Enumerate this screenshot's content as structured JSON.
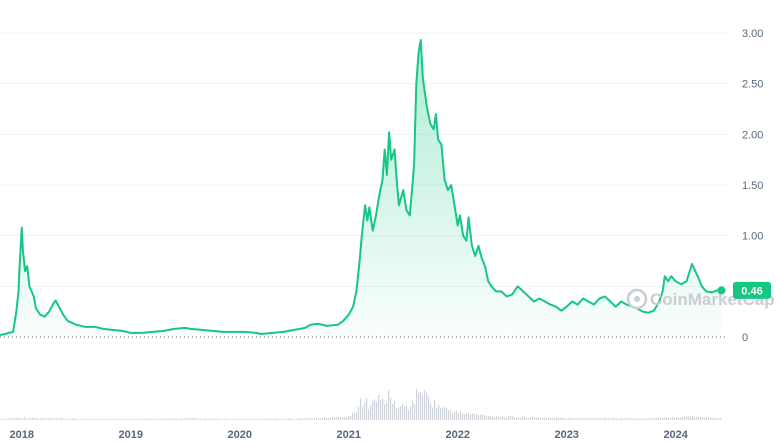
{
  "chart_data": {
    "type": "area",
    "title": "",
    "xlabel": "",
    "ylabel": "",
    "ylim": [
      0,
      3.0
    ],
    "y_ticks": [
      "3.00",
      "2.50",
      "2.00",
      "1.50",
      "1.00",
      "0.50",
      "0"
    ],
    "y_tick_values": [
      3.0,
      2.5,
      2.0,
      1.5,
      1.0,
      0.5,
      0
    ],
    "x_ticks": [
      "2018",
      "2019",
      "2020",
      "2021",
      "2022",
      "2023",
      "2024"
    ],
    "x_tick_values": [
      2018.0,
      2019.0,
      2020.0,
      2021.0,
      2022.0,
      2023.0,
      2024.0
    ],
    "xlim": [
      2017.8,
      2024.48
    ],
    "grid": true,
    "line_color": "#16c784",
    "current_price_label": "0.46",
    "current_price": 0.46,
    "watermark": "CoinMarketCap",
    "series": [
      {
        "values": [
          [
            2017.8,
            0.02
          ],
          [
            2017.85,
            0.03
          ],
          [
            2017.88,
            0.04
          ],
          [
            2017.92,
            0.05
          ],
          [
            2017.95,
            0.25
          ],
          [
            2017.97,
            0.45
          ],
          [
            2017.98,
            0.7
          ],
          [
            2018.0,
            1.08
          ],
          [
            2018.01,
            0.85
          ],
          [
            2018.03,
            0.65
          ],
          [
            2018.05,
            0.7
          ],
          [
            2018.07,
            0.5
          ],
          [
            2018.09,
            0.45
          ],
          [
            2018.11,
            0.4
          ],
          [
            2018.13,
            0.28
          ],
          [
            2018.17,
            0.22
          ],
          [
            2018.21,
            0.2
          ],
          [
            2018.25,
            0.25
          ],
          [
            2018.29,
            0.33
          ],
          [
            2018.31,
            0.36
          ],
          [
            2018.34,
            0.3
          ],
          [
            2018.38,
            0.22
          ],
          [
            2018.42,
            0.16
          ],
          [
            2018.5,
            0.12
          ],
          [
            2018.58,
            0.1
          ],
          [
            2018.67,
            0.1
          ],
          [
            2018.75,
            0.08
          ],
          [
            2018.83,
            0.07
          ],
          [
            2018.92,
            0.06
          ],
          [
            2019.0,
            0.04
          ],
          [
            2019.1,
            0.04
          ],
          [
            2019.2,
            0.05
          ],
          [
            2019.3,
            0.06
          ],
          [
            2019.4,
            0.08
          ],
          [
            2019.5,
            0.09
          ],
          [
            2019.55,
            0.08
          ],
          [
            2019.65,
            0.07
          ],
          [
            2019.75,
            0.06
          ],
          [
            2019.85,
            0.05
          ],
          [
            2019.95,
            0.05
          ],
          [
            2020.05,
            0.05
          ],
          [
            2020.15,
            0.04
          ],
          [
            2020.2,
            0.03
          ],
          [
            2020.3,
            0.04
          ],
          [
            2020.4,
            0.05
          ],
          [
            2020.5,
            0.07
          ],
          [
            2020.6,
            0.09
          ],
          [
            2020.65,
            0.12
          ],
          [
            2020.72,
            0.13
          ],
          [
            2020.8,
            0.11
          ],
          [
            2020.9,
            0.12
          ],
          [
            2020.95,
            0.16
          ],
          [
            2021.0,
            0.22
          ],
          [
            2021.04,
            0.3
          ],
          [
            2021.07,
            0.45
          ],
          [
            2021.1,
            0.75
          ],
          [
            2021.12,
            1.0
          ],
          [
            2021.15,
            1.3
          ],
          [
            2021.17,
            1.15
          ],
          [
            2021.19,
            1.28
          ],
          [
            2021.22,
            1.05
          ],
          [
            2021.25,
            1.2
          ],
          [
            2021.28,
            1.4
          ],
          [
            2021.31,
            1.55
          ],
          [
            2021.33,
            1.85
          ],
          [
            2021.35,
            1.6
          ],
          [
            2021.37,
            2.02
          ],
          [
            2021.39,
            1.75
          ],
          [
            2021.42,
            1.85
          ],
          [
            2021.44,
            1.55
          ],
          [
            2021.46,
            1.3
          ],
          [
            2021.5,
            1.45
          ],
          [
            2021.53,
            1.25
          ],
          [
            2021.56,
            1.2
          ],
          [
            2021.58,
            1.45
          ],
          [
            2021.6,
            1.7
          ],
          [
            2021.62,
            2.5
          ],
          [
            2021.64,
            2.8
          ],
          [
            2021.66,
            2.93
          ],
          [
            2021.68,
            2.55
          ],
          [
            2021.7,
            2.4
          ],
          [
            2021.72,
            2.25
          ],
          [
            2021.75,
            2.1
          ],
          [
            2021.78,
            2.05
          ],
          [
            2021.8,
            2.2
          ],
          [
            2021.82,
            1.95
          ],
          [
            2021.85,
            1.9
          ],
          [
            2021.88,
            1.55
          ],
          [
            2021.91,
            1.45
          ],
          [
            2021.94,
            1.5
          ],
          [
            2021.97,
            1.3
          ],
          [
            2022.0,
            1.1
          ],
          [
            2022.02,
            1.2
          ],
          [
            2022.05,
            1.0
          ],
          [
            2022.08,
            0.95
          ],
          [
            2022.1,
            1.18
          ],
          [
            2022.13,
            0.9
          ],
          [
            2022.16,
            0.8
          ],
          [
            2022.19,
            0.9
          ],
          [
            2022.22,
            0.78
          ],
          [
            2022.25,
            0.7
          ],
          [
            2022.28,
            0.55
          ],
          [
            2022.31,
            0.5
          ],
          [
            2022.35,
            0.45
          ],
          [
            2022.4,
            0.45
          ],
          [
            2022.45,
            0.4
          ],
          [
            2022.5,
            0.42
          ],
          [
            2022.55,
            0.5
          ],
          [
            2022.6,
            0.45
          ],
          [
            2022.65,
            0.4
          ],
          [
            2022.7,
            0.35
          ],
          [
            2022.75,
            0.38
          ],
          [
            2022.8,
            0.35
          ],
          [
            2022.85,
            0.32
          ],
          [
            2022.9,
            0.3
          ],
          [
            2022.95,
            0.26
          ],
          [
            2023.0,
            0.3
          ],
          [
            2023.05,
            0.35
          ],
          [
            2023.1,
            0.32
          ],
          [
            2023.15,
            0.38
          ],
          [
            2023.2,
            0.35
          ],
          [
            2023.25,
            0.32
          ],
          [
            2023.3,
            0.38
          ],
          [
            2023.35,
            0.4
          ],
          [
            2023.4,
            0.35
          ],
          [
            2023.45,
            0.3
          ],
          [
            2023.5,
            0.35
          ],
          [
            2023.55,
            0.32
          ],
          [
            2023.6,
            0.3
          ],
          [
            2023.65,
            0.28
          ],
          [
            2023.7,
            0.25
          ],
          [
            2023.75,
            0.24
          ],
          [
            2023.8,
            0.26
          ],
          [
            2023.85,
            0.35
          ],
          [
            2023.88,
            0.45
          ],
          [
            2023.9,
            0.6
          ],
          [
            2023.93,
            0.55
          ],
          [
            2023.96,
            0.6
          ],
          [
            2024.0,
            0.55
          ],
          [
            2024.05,
            0.52
          ],
          [
            2024.1,
            0.55
          ],
          [
            2024.15,
            0.72
          ],
          [
            2024.18,
            0.65
          ],
          [
            2024.21,
            0.58
          ],
          [
            2024.24,
            0.5
          ],
          [
            2024.28,
            0.45
          ],
          [
            2024.33,
            0.44
          ],
          [
            2024.38,
            0.46
          ],
          [
            2024.42,
            0.46
          ]
        ]
      }
    ],
    "volume_ylim": [
      0,
      1
    ],
    "volume": [
      [
        2017.8,
        0.02
      ],
      [
        2018.0,
        0.05
      ],
      [
        2018.1,
        0.04
      ],
      [
        2018.3,
        0.03
      ],
      [
        2018.6,
        0.02
      ],
      [
        2019.0,
        0.02
      ],
      [
        2019.5,
        0.03
      ],
      [
        2020.0,
        0.02
      ],
      [
        2020.5,
        0.03
      ],
      [
        2020.85,
        0.05
      ],
      [
        2021.0,
        0.08
      ],
      [
        2021.05,
        0.15
      ],
      [
        2021.1,
        0.35
      ],
      [
        2021.13,
        0.22
      ],
      [
        2021.15,
        0.4
      ],
      [
        2021.18,
        0.3
      ],
      [
        2021.22,
        0.55
      ],
      [
        2021.25,
        0.35
      ],
      [
        2021.28,
        0.45
      ],
      [
        2021.32,
        0.3
      ],
      [
        2021.35,
        0.5
      ],
      [
        2021.4,
        0.35
      ],
      [
        2021.45,
        0.25
      ],
      [
        2021.5,
        0.28
      ],
      [
        2021.55,
        0.25
      ],
      [
        2021.6,
        0.4
      ],
      [
        2021.63,
        0.55
      ],
      [
        2021.66,
        0.65
      ],
      [
        2021.69,
        0.5
      ],
      [
        2021.72,
        0.45
      ],
      [
        2021.76,
        0.35
      ],
      [
        2021.8,
        0.3
      ],
      [
        2021.85,
        0.25
      ],
      [
        2021.9,
        0.2
      ],
      [
        2021.95,
        0.18
      ],
      [
        2022.0,
        0.15
      ],
      [
        2022.1,
        0.12
      ],
      [
        2022.2,
        0.1
      ],
      [
        2022.3,
        0.08
      ],
      [
        2022.5,
        0.06
      ],
      [
        2022.7,
        0.05
      ],
      [
        2023.0,
        0.04
      ],
      [
        2023.3,
        0.04
      ],
      [
        2023.6,
        0.03
      ],
      [
        2023.85,
        0.04
      ],
      [
        2024.0,
        0.06
      ],
      [
        2024.15,
        0.08
      ],
      [
        2024.3,
        0.05
      ],
      [
        2024.42,
        0.04
      ]
    ]
  }
}
